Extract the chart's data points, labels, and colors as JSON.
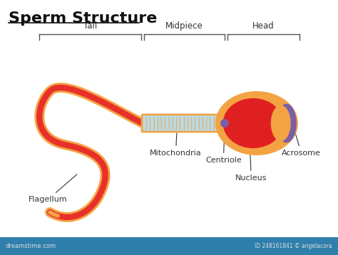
{
  "title": "Sperm Structure",
  "title_fontsize": 16,
  "title_fontweight": "bold",
  "bg_color": "#ffffff",
  "tail_color_outer": "#f4a343",
  "tail_color_inner": "#e8302a",
  "midpiece_color": "#b8dcea",
  "midpiece_outline": "#f4a343",
  "head_outer_color": "#f4a343",
  "head_nucleus_color": "#e02020",
  "head_acrosome_color": "#7b5ea7",
  "centriole_color": "#7b5ea7",
  "label_color": "#333333",
  "label_fontsize": 8,
  "section_label_fontsize": 8.5,
  "bottom_bar_color": "#2e7fab",
  "watermark_text": "dreamstime.com",
  "watermark_color": "#dddddd",
  "copyright_text": "ID 248161841 © angelacora",
  "bracket_color": "#555555"
}
